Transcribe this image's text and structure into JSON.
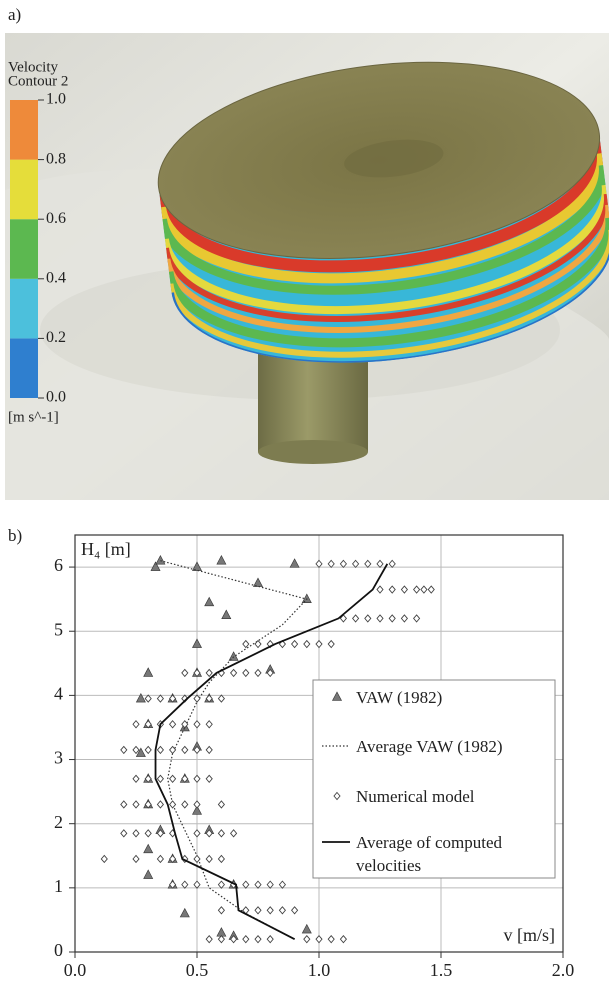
{
  "panel_a": {
    "label": "a)",
    "colorbar": {
      "title": [
        "Velocity",
        "Contour 2"
      ],
      "unit": "[m s^-1]",
      "ticks": [
        {
          "value": 1,
          "label": "1.0"
        },
        0.8,
        0.6,
        0.4,
        0.2,
        {
          "value": 0,
          "label": "0.0"
        }
      ],
      "lim": [
        0,
        1
      ],
      "bands": [
        {
          "from": 0,
          "to": 0.2,
          "color": "#2f7fcf"
        },
        {
          "from": 0.2,
          "to": 0.4,
          "color": "#4cc0dc"
        },
        {
          "from": 0.4,
          "to": 0.6,
          "color": "#5cb850"
        },
        {
          "from": 0.6,
          "to": 0.8,
          "color": "#e5dd3a"
        },
        {
          "from": 0.8,
          "to": 1,
          "color": "#ee8a3a"
        }
      ]
    }
  },
  "chart_data": {
    "type": "scatter",
    "label": "b)",
    "xlabel": "v [m/s]",
    "ylabel": "H₄ [m]",
    "xlim": [
      0,
      2
    ],
    "ylim": [
      0,
      6.5
    ],
    "xticks": [
      {
        "value": 0,
        "label": "0.0"
      },
      0.5,
      {
        "value": 1,
        "label": "1.0"
      },
      1.5,
      {
        "value": 2,
        "label": "2.0"
      }
    ],
    "yticks": [
      0,
      1,
      2,
      3,
      4,
      5,
      6
    ],
    "grid": true,
    "series": [
      {
        "name": "VAW (1982)",
        "marker": "triangle",
        "color": "#777777",
        "x": [
          0.33,
          0.35,
          0.5,
          0.6,
          0.75,
          0.95,
          0.9,
          0.55,
          0.62,
          0.5,
          0.65,
          0.8,
          0.3,
          0.5,
          0.27,
          0.4,
          0.55,
          0.3,
          0.45,
          0.27,
          0.5,
          0.3,
          0.45,
          0.3,
          0.5,
          0.35,
          0.55,
          0.3,
          0.4,
          0.4,
          0.65,
          0.45,
          0.6,
          0.65,
          0.95,
          0.3
        ],
        "y": [
          6.0,
          6.1,
          6.0,
          6.1,
          5.75,
          5.5,
          6.05,
          5.45,
          5.25,
          4.8,
          4.6,
          4.4,
          4.35,
          4.35,
          3.95,
          3.95,
          3.95,
          3.55,
          3.5,
          3.1,
          3.2,
          2.7,
          2.7,
          2.3,
          2.2,
          1.9,
          1.9,
          1.6,
          1.45,
          1.05,
          1.05,
          0.6,
          0.3,
          0.25,
          0.35,
          1.2
        ]
      },
      {
        "name": "Average VAW (1982)",
        "line": "dotted",
        "color": "#333333",
        "x": [
          0.35,
          0.95,
          0.85,
          0.65,
          0.55,
          0.5,
          0.45,
          0.4,
          0.38,
          0.4,
          0.45,
          0.5,
          0.55,
          0.7,
          0.9
        ],
        "y": [
          6.1,
          5.5,
          5.1,
          4.6,
          4.2,
          3.9,
          3.5,
          3.1,
          2.7,
          2.3,
          1.9,
          1.5,
          1.0,
          0.6,
          0.2
        ]
      },
      {
        "name": "Numerical model",
        "marker": "diamond",
        "color": "#444444",
        "x": [
          1.0,
          1.05,
          1.1,
          1.15,
          1.2,
          1.25,
          1.3,
          1.25,
          1.3,
          1.35,
          1.4,
          1.43,
          1.46,
          1.1,
          1.15,
          1.2,
          1.25,
          1.3,
          1.35,
          1.4,
          0.7,
          0.75,
          0.8,
          0.85,
          0.9,
          0.95,
          1.0,
          1.05,
          0.45,
          0.5,
          0.55,
          0.6,
          0.65,
          0.7,
          0.75,
          0.8,
          0.3,
          0.35,
          0.4,
          0.45,
          0.5,
          0.55,
          0.6,
          0.25,
          0.3,
          0.35,
          0.4,
          0.45,
          0.5,
          0.55,
          0.2,
          0.25,
          0.3,
          0.35,
          0.4,
          0.45,
          0.5,
          0.55,
          0.25,
          0.3,
          0.35,
          0.4,
          0.45,
          0.5,
          0.55,
          0.2,
          0.25,
          0.3,
          0.35,
          0.4,
          0.45,
          0.5,
          0.6,
          0.2,
          0.25,
          0.3,
          0.35,
          0.4,
          0.5,
          0.55,
          0.6,
          0.65,
          0.12,
          0.25,
          0.35,
          0.4,
          0.45,
          0.5,
          0.55,
          0.6,
          0.4,
          0.45,
          0.5,
          0.6,
          0.65,
          0.7,
          0.75,
          0.8,
          0.85,
          0.6,
          0.7,
          0.75,
          0.8,
          0.85,
          0.9,
          0.55,
          0.6,
          0.65,
          0.7,
          0.75,
          0.8,
          0.95,
          1.0,
          1.05,
          1.1
        ],
        "y": [
          6.05,
          6.05,
          6.05,
          6.05,
          6.05,
          6.05,
          6.05,
          5.65,
          5.65,
          5.65,
          5.65,
          5.65,
          5.65,
          5.2,
          5.2,
          5.2,
          5.2,
          5.2,
          5.2,
          5.2,
          4.8,
          4.8,
          4.8,
          4.8,
          4.8,
          4.8,
          4.8,
          4.8,
          4.35,
          4.35,
          4.35,
          4.35,
          4.35,
          4.35,
          4.35,
          4.35,
          3.95,
          3.95,
          3.95,
          3.95,
          3.95,
          3.95,
          3.95,
          3.55,
          3.55,
          3.55,
          3.55,
          3.55,
          3.55,
          3.55,
          3.15,
          3.15,
          3.15,
          3.15,
          3.15,
          3.15,
          3.15,
          3.15,
          2.7,
          2.7,
          2.7,
          2.7,
          2.7,
          2.7,
          2.7,
          2.3,
          2.3,
          2.3,
          2.3,
          2.3,
          2.3,
          2.3,
          2.3,
          1.85,
          1.85,
          1.85,
          1.85,
          1.85,
          1.85,
          1.85,
          1.85,
          1.85,
          1.45,
          1.45,
          1.45,
          1.45,
          1.45,
          1.45,
          1.45,
          1.45,
          1.05,
          1.05,
          1.05,
          1.05,
          1.05,
          1.05,
          1.05,
          1.05,
          1.05,
          0.65,
          0.65,
          0.65,
          0.65,
          0.65,
          0.65,
          0.2,
          0.2,
          0.2,
          0.2,
          0.2,
          0.2,
          0.2,
          0.2,
          0.2,
          0.2
        ]
      },
      {
        "name": "Average of computed velocities",
        "line": "solid",
        "color": "#111111",
        "x": [
          0.9,
          0.67,
          0.66,
          0.44,
          0.41,
          0.38,
          0.33,
          0.33,
          0.35,
          0.46,
          0.58,
          0.82,
          1.08,
          1.22,
          1.28
        ],
        "y": [
          0.2,
          0.65,
          1.05,
          1.45,
          1.85,
          2.3,
          2.7,
          3.15,
          3.55,
          3.95,
          4.35,
          4.8,
          5.2,
          5.65,
          6.05
        ]
      }
    ]
  }
}
